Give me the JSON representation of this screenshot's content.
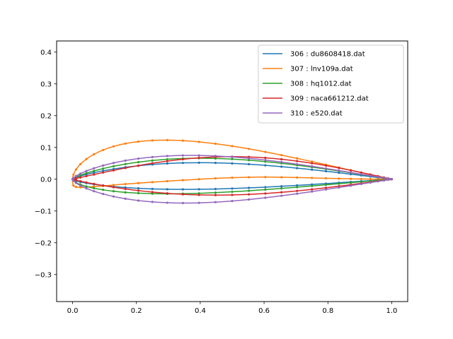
{
  "chart_data": {
    "type": "line",
    "title": "",
    "xlabel": "",
    "ylabel": "",
    "xlim": [
      -0.05,
      1.05
    ],
    "ylim": [
      -0.385,
      0.435
    ],
    "x_ticks": [
      0.0,
      0.2,
      0.4,
      0.6,
      0.8,
      1.0
    ],
    "x_tick_labels": [
      "0.0",
      "0.2",
      "0.4",
      "0.6",
      "0.8",
      "1.0"
    ],
    "y_ticks": [
      -0.3,
      -0.2,
      -0.1,
      0.0,
      0.1,
      0.2,
      0.3,
      0.4
    ],
    "y_tick_labels": [
      "−0.3",
      "−0.2",
      "−0.1",
      "0.0",
      "0.1",
      "0.2",
      "0.3",
      "0.4"
    ],
    "grid": false,
    "legend_position": "top-right",
    "series": [
      {
        "name": "306 : du8608418.dat",
        "color": "#1f77b4",
        "upper_max": 0.052,
        "upper_peak_x": 0.4,
        "lower_min": -0.032,
        "lower_peak_x": 0.35
      },
      {
        "name": "307 : lnv109a.dat",
        "color": "#ff7f0e",
        "upper_max": 0.123,
        "upper_peak_x": 0.29,
        "lower_min": -0.028,
        "lower_peak_x": 0.03,
        "lower_reflex_max": 0.008,
        "lower_reflex_x": 0.6
      },
      {
        "name": "308 : hq1012.dat",
        "color": "#2ca02c",
        "upper_max": 0.066,
        "upper_peak_x": 0.4,
        "lower_min": -0.046,
        "lower_peak_x": 0.3
      },
      {
        "name": "309 : naca661212.dat",
        "color": "#d62728",
        "upper_max": 0.071,
        "upper_peak_x": 0.5,
        "lower_min": -0.05,
        "lower_peak_x": 0.45
      },
      {
        "name": "310 : e520.dat",
        "color": "#9467bd",
        "upper_max": 0.075,
        "upper_peak_x": 0.37,
        "lower_min": -0.075,
        "lower_peak_x": 0.35
      }
    ]
  }
}
